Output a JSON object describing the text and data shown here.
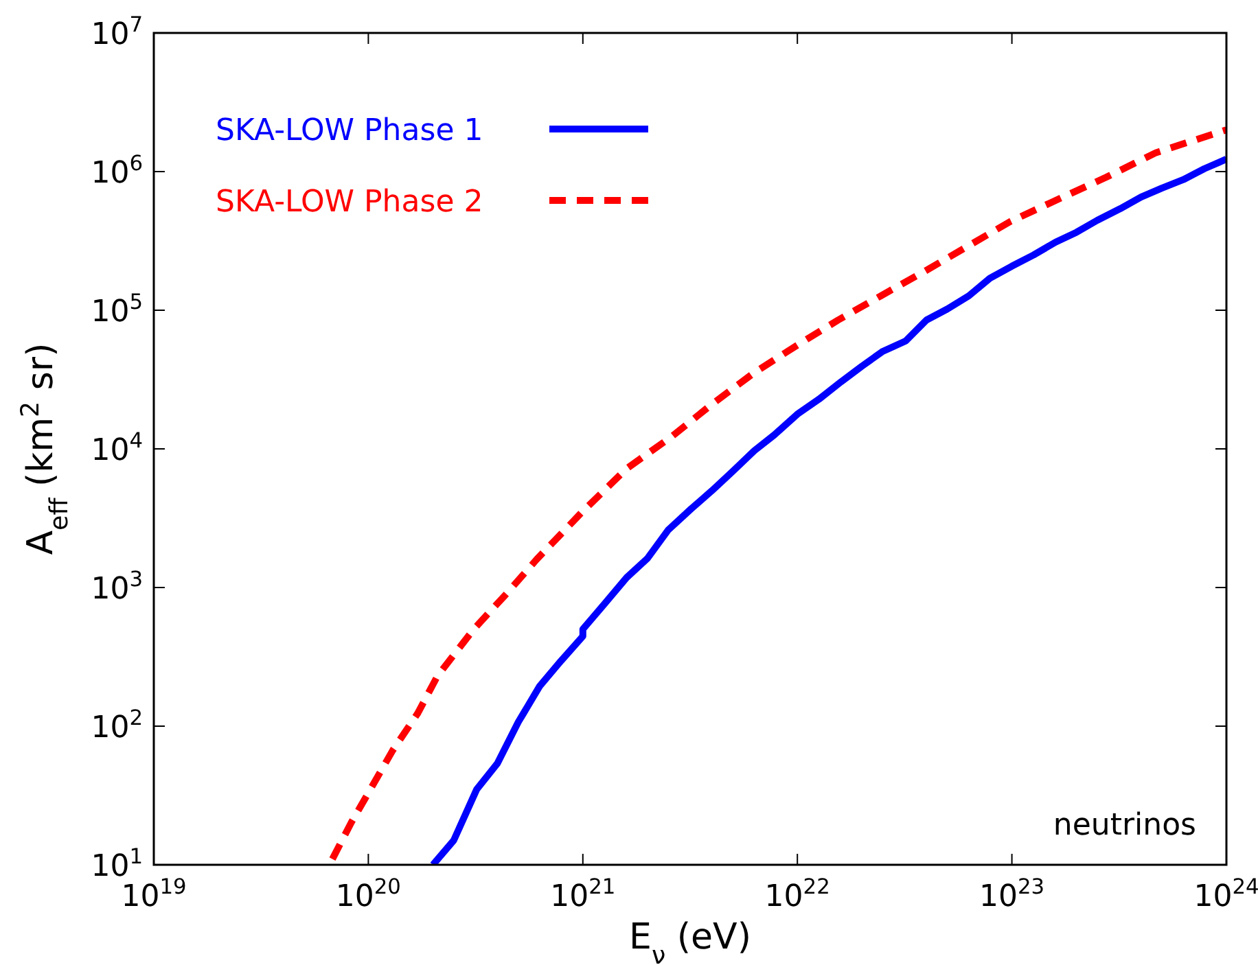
{
  "chart_data": {
    "type": "line",
    "xlabel": "E$_{ν}$ (eV)",
    "ylabel": "A$_{eff}$ (km$^{2}$ sr)",
    "log": "xy",
    "grid": false,
    "legend": "top left",
    "annotations": [
      "neutrinos"
    ],
    "xlim": [
      1e+19,
      1e+24
    ],
    "ylim": [
      10,
      10000000
    ],
    "xticks": [
      {
        "value": 1e+19,
        "label": "10$^{19}$"
      },
      {
        "value": 1e+20,
        "label": "10$^{20}$"
      },
      {
        "value": 1e+21,
        "label": "10$^{21}$"
      },
      {
        "value": 1e+22,
        "label": "10$^{22}$"
      },
      {
        "value": 1e+23,
        "label": "10$^{23}$"
      },
      {
        "value": 1e+24,
        "label": "10$^{24}$"
      }
    ],
    "yticks": [
      {
        "value": 10,
        "label": "10$^{1}$"
      },
      {
        "value": 100,
        "label": "10$^{2}$"
      },
      {
        "value": 1000,
        "label": "10$^{3}$"
      },
      {
        "value": 10000,
        "label": "10$^{4}$"
      },
      {
        "value": 100000,
        "label": "10$^{5}$"
      },
      {
        "value": 1000000,
        "label": "10$^{6}$"
      },
      {
        "value": 10000000,
        "label": "10$^{7}$"
      }
    ],
    "series": [
      {
        "name": "SKA-LOW Phase 1",
        "color": "#0000ff",
        "line_style": "solid",
        "x": [
          2e+20,
          2.5e+20,
          3.2e+20,
          4e+20,
          5e+20,
          6.3e+20,
          7.9e+20,
          1e+21,
          1e+21,
          1.26e+21,
          1.6e+21,
          2e+21,
          2.5e+21,
          3.2e+21,
          4e+21,
          5e+21,
          6.3e+21,
          7.8e+21,
          1e+22,
          1.26e+22,
          1.6e+22,
          2e+22,
          2.5e+22,
          3.2e+22,
          4e+22,
          5e+22,
          6.3e+22,
          7.9e+22,
          1e+23,
          1.26e+23,
          1.6e+23,
          2e+23,
          2.5e+23,
          3.2e+23,
          4e+23,
          5e+23,
          6.3e+23,
          7.9e+23,
          1e+24
        ],
        "values": [
          10,
          15,
          35,
          54,
          107,
          195,
          295,
          445,
          500,
          760,
          1180,
          1620,
          2600,
          3700,
          5000,
          6900,
          9700,
          12600,
          17800,
          22800,
          30500,
          39500,
          50500,
          60000,
          85000,
          102000,
          127000,
          170000,
          208000,
          250000,
          310000,
          365000,
          445000,
          540000,
          655000,
          760000,
          875000,
          1050000,
          1230000
        ]
      },
      {
        "name": "SKA-LOW Phase 2",
        "color": "#ff0000",
        "line_style": "dashed",
        "x": [
          6.8e+19,
          8.3e+19,
          1e+20,
          1.3e+20,
          1.7e+20,
          2.1e+20,
          3.1e+20,
          4.4e+20,
          6.1e+20,
          1e+21,
          1.6e+21,
          2.6e+21,
          4e+21,
          6.3e+21,
          1e+22,
          1.55e+22,
          2.45e+22,
          3.9e+22,
          6e+22,
          9.8e+22,
          1.6e+23,
          2.75e+23,
          4.7e+23,
          1e+24
        ],
        "values": [
          11,
          20,
          33,
          67,
          124,
          230,
          500,
          900,
          1600,
          3550,
          7200,
          12300,
          21000,
          35500,
          56000,
          85000,
          127000,
          190000,
          280000,
          435000,
          620000,
          910000,
          1370000,
          2000000
        ]
      }
    ]
  }
}
